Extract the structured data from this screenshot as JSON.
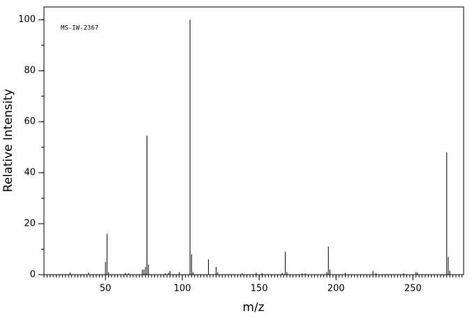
{
  "chart_data": {
    "type": "stem",
    "annotation": "MS-IW-2367",
    "x_label": "m/z",
    "y_label": "Relative Intensity",
    "x": [
      27,
      39,
      50,
      51,
      52,
      63,
      65,
      74,
      75,
      76,
      77,
      78,
      89,
      91,
      92,
      98,
      105,
      106,
      107,
      117,
      122,
      123,
      139,
      148,
      152,
      165,
      167,
      168,
      178,
      180,
      194,
      195,
      196,
      206,
      224,
      226,
      244,
      252,
      253,
      272,
      273,
      274
    ],
    "values": [
      0.8,
      0.8,
      5,
      16,
      1,
      0.7,
      0.6,
      2,
      2,
      3,
      54.5,
      4,
      0.6,
      0.8,
      1.5,
      1,
      100,
      8,
      1,
      6,
      3,
      1,
      0.6,
      0.8,
      0.6,
      0.7,
      9,
      1,
      0.5,
      0.5,
      1,
      11,
      2,
      0.7,
      1.5,
      0.6,
      0.5,
      1,
      0.8,
      48,
      7,
      1.5
    ],
    "color": "#000000",
    "xlim": [
      10,
      283
    ],
    "ylim": [
      0,
      105
    ],
    "xticks": [
      50,
      100,
      150,
      200,
      250
    ],
    "yticks": [
      0,
      20,
      40,
      60,
      80,
      100
    ],
    "xminorstep": 2,
    "yminorstep": 10,
    "grid": false
  }
}
